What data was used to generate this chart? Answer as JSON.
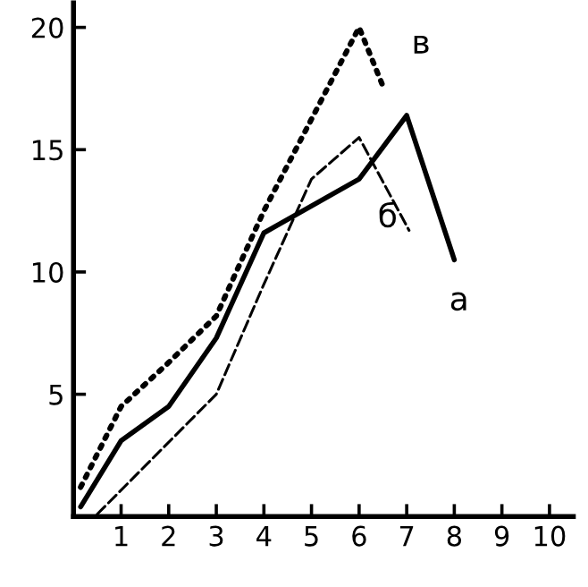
{
  "chart_data": {
    "type": "line",
    "xlim": [
      0,
      10.5
    ],
    "ylim": [
      0,
      21
    ],
    "xticks": [
      1,
      2,
      3,
      4,
      5,
      6,
      7,
      8,
      9,
      10
    ],
    "yticks": [
      5,
      10,
      15,
      20
    ],
    "grid": false,
    "legend": false,
    "marker": "none",
    "series": [
      {
        "name": "а",
        "color": "#000000",
        "line_style": "solid",
        "x": [
          0.15,
          1,
          2,
          3,
          4,
          6,
          7,
          8
        ],
        "values": [
          0.4,
          3.1,
          4.5,
          7.3,
          11.6,
          13.8,
          16.4,
          10.5
        ]
      },
      {
        "name": "б",
        "color": "#000000",
        "line_style": "dashed",
        "x": [
          0.5,
          3,
          4,
          5,
          6,
          7.05
        ],
        "values": [
          0.1,
          5.0,
          9.5,
          13.8,
          15.5,
          11.7
        ]
      },
      {
        "name": "в",
        "color": "#000000",
        "line_style": "dotted",
        "x": [
          0.15,
          1,
          2,
          3,
          4,
          6,
          6.5
        ],
        "values": [
          1.2,
          4.5,
          6.3,
          8.2,
          12.5,
          20,
          17.6
        ]
      }
    ]
  }
}
